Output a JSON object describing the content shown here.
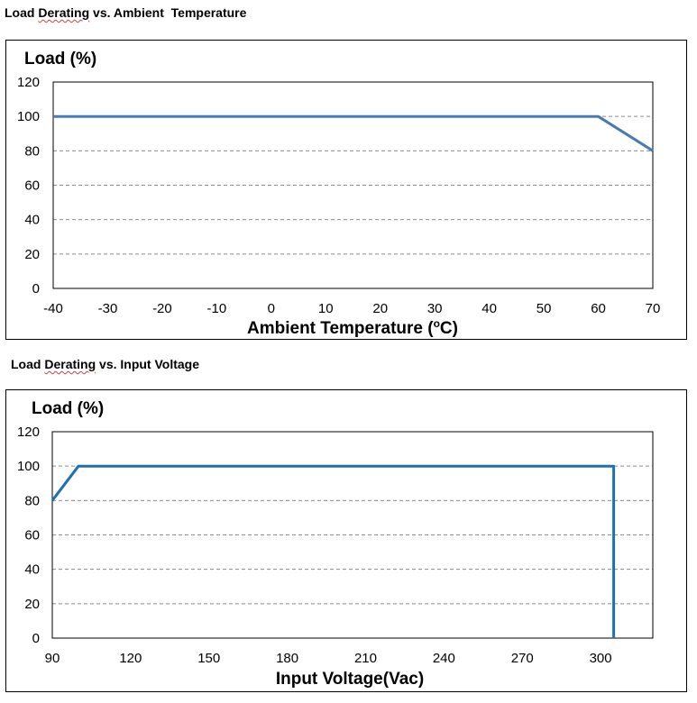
{
  "headings": {
    "chart1": {
      "parts": [
        "Load ",
        "Derating",
        " vs. Ambient  Temperature"
      ]
    },
    "chart2": {
      "parts": [
        "Load ",
        "Derating",
        " vs. Input Voltage"
      ]
    }
  },
  "chart_data": [
    {
      "type": "line",
      "title": "Load Derating vs. Ambient  Temperature",
      "ylabel": "Load (%)",
      "xlabel_parts": [
        "Ambient Temperature (",
        "o",
        "C)"
      ],
      "xlim": [
        -40,
        70
      ],
      "ylim": [
        0,
        120
      ],
      "xticks": [
        -40,
        -30,
        -20,
        -10,
        0,
        10,
        20,
        30,
        40,
        50,
        60,
        70
      ],
      "yticks": [
        0,
        20,
        40,
        60,
        80,
        100,
        120
      ],
      "grid": "horizontal dashed",
      "series": [
        {
          "x": [
            -40,
            60,
            70
          ],
          "y": [
            100,
            100,
            80
          ],
          "color": "#4a7ab5"
        }
      ]
    },
    {
      "type": "line",
      "title": "Load Derating vs. Input Voltage",
      "ylabel": "Load (%)",
      "xlabel_parts": [
        "Input Voltage(Vac)"
      ],
      "xlim": [
        90,
        320
      ],
      "ylim": [
        0,
        120
      ],
      "xticks": [
        90,
        120,
        150,
        180,
        210,
        240,
        270,
        300
      ],
      "yticks": [
        0,
        20,
        40,
        60,
        80,
        100,
        120
      ],
      "grid": "horizontal dashed",
      "series": [
        {
          "x": [
            90,
            100,
            305,
            305
          ],
          "y": [
            80,
            100,
            100,
            0
          ],
          "color": "#1f6fb5"
        }
      ]
    }
  ]
}
